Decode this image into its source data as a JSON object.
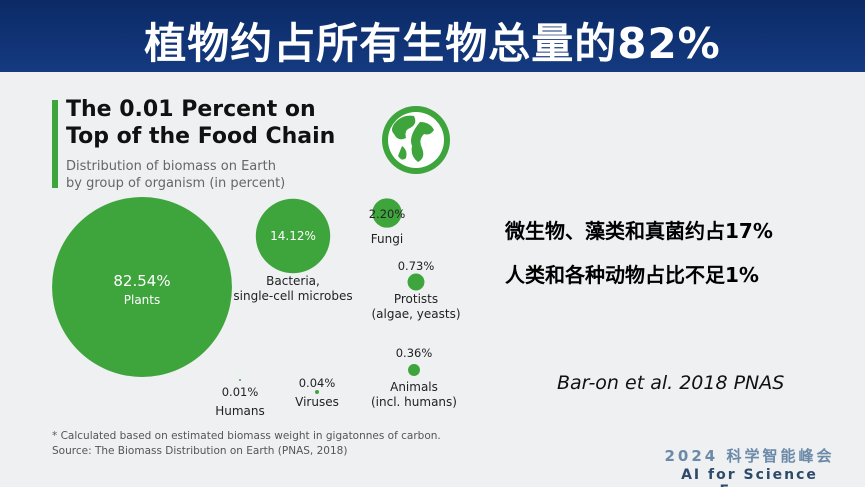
{
  "banner": {
    "title": "植物约占所有生物总量的82%"
  },
  "chart_data": {
    "type": "bubble",
    "title": "The 0.01 Percent on\nTop of the Food Chain",
    "subtitle": "Distribution of biomass on Earth\nby group of organism (in percent)",
    "categories": [
      "Plants",
      "Bacteria,\nsingle-cell microbes",
      "Fungi",
      "Protists\n(algae, yeasts)",
      "Animals\n(incl. humans)",
      "Humans",
      "Viruses"
    ],
    "values": [
      82.54,
      14.12,
      2.2,
      0.73,
      0.36,
      0.01,
      0.04
    ],
    "value_labels": [
      "82.54%",
      "14.12%",
      "2.20%",
      "0.73%",
      "0.36%",
      "0.01%",
      "0.04%"
    ],
    "color": "#3ea43c",
    "footnotes": [
      "* Calculated based on estimated biomass weight in gigatonnes of carbon.",
      "Source: The Biomass Distribution on Earth (PNAS, 2018)"
    ]
  },
  "side_notes": [
    "微生物、藻类和真菌约占17%",
    "人类和各种动物占比不足1%"
  ],
  "citation": "Bar-on et al. 2018 PNAS",
  "forum": {
    "line1": "2024 科学智能峰会",
    "line2": "AI for Science Forum"
  }
}
